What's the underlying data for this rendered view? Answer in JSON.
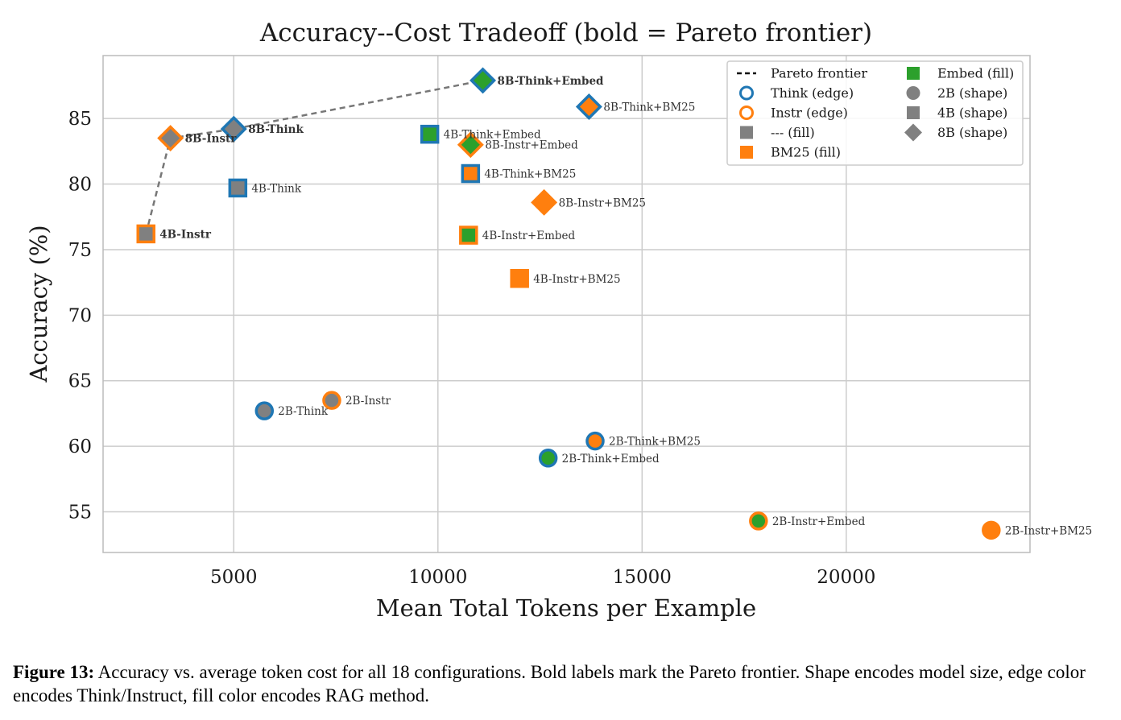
{
  "colors": {
    "think": "#1f77b4",
    "instr": "#ff7f0e",
    "embed": "#2ca02c",
    "bm25": "#ff7f0e",
    "none": "#808080",
    "frontier": "#777777",
    "grid": "#cccccc"
  },
  "caption": {
    "label": "Figure 13:",
    "text": " Accuracy vs. average token cost for all 18 configurations. Bold labels mark the Pareto frontier. Shape encodes model size, edge color encodes Think/Instruct, fill color encodes RAG method."
  },
  "chart_data": {
    "type": "scatter",
    "title": "Accuracy--Cost Tradeoff (bold = Pareto frontier)",
    "xlabel": "Mean Total Tokens per Example",
    "ylabel": "Accuracy (%)",
    "xlim": [
      1800,
      24500
    ],
    "ylim": [
      51.9,
      89.8
    ],
    "xticks": [
      5000,
      10000,
      15000,
      20000
    ],
    "yticks": [
      55,
      60,
      65,
      70,
      75,
      80,
      85
    ],
    "grid": true,
    "legend_position": "top-right",
    "legend": [
      {
        "label": "Pareto frontier",
        "kind": "dashed-line"
      },
      {
        "label": "Think (edge)",
        "kind": "edge-think"
      },
      {
        "label": "Instr (edge)",
        "kind": "edge-instr"
      },
      {
        "label": "--- (fill)",
        "kind": "fill-none"
      },
      {
        "label": "BM25 (fill)",
        "kind": "fill-bm25"
      },
      {
        "label": "Embed (fill)",
        "kind": "fill-embed"
      },
      {
        "label": "2B (shape)",
        "kind": "shape-circle"
      },
      {
        "label": "4B (shape)",
        "kind": "shape-square"
      },
      {
        "label": "8B (shape)",
        "kind": "shape-diamond"
      }
    ],
    "points": [
      {
        "label": "8B-Think+Embed",
        "x": 11100,
        "y": 87.9,
        "shape": "diamond",
        "edge": "think",
        "fill": "embed",
        "pareto": true
      },
      {
        "label": "8B-Think+BM25",
        "x": 13700,
        "y": 85.9,
        "shape": "diamond",
        "edge": "think",
        "fill": "bm25",
        "pareto": false
      },
      {
        "label": "8B-Think",
        "x": 5000,
        "y": 84.2,
        "shape": "diamond",
        "edge": "think",
        "fill": "none",
        "pareto": true
      },
      {
        "label": "8B-Instr",
        "x": 3450,
        "y": 83.5,
        "shape": "diamond",
        "edge": "instr",
        "fill": "none",
        "pareto": true
      },
      {
        "label": "4B-Think+Embed",
        "x": 9800,
        "y": 83.8,
        "shape": "square",
        "edge": "think",
        "fill": "embed",
        "pareto": false
      },
      {
        "label": "8B-Instr+Embed",
        "x": 10800,
        "y": 83.0,
        "shape": "diamond",
        "edge": "instr",
        "fill": "embed",
        "pareto": false
      },
      {
        "label": "4B-Think+BM25",
        "x": 10800,
        "y": 80.8,
        "shape": "square",
        "edge": "think",
        "fill": "bm25",
        "pareto": false
      },
      {
        "label": "4B-Think",
        "x": 5100,
        "y": 79.7,
        "shape": "square",
        "edge": "think",
        "fill": "none",
        "pareto": false
      },
      {
        "label": "8B-Instr+BM25",
        "x": 12600,
        "y": 78.6,
        "shape": "diamond",
        "edge": "instr",
        "fill": "bm25",
        "pareto": false
      },
      {
        "label": "4B-Instr",
        "x": 2850,
        "y": 76.2,
        "shape": "square",
        "edge": "instr",
        "fill": "none",
        "pareto": true
      },
      {
        "label": "4B-Instr+Embed",
        "x": 10750,
        "y": 76.1,
        "shape": "square",
        "edge": "instr",
        "fill": "embed",
        "pareto": false
      },
      {
        "label": "4B-Instr+BM25",
        "x": 12000,
        "y": 72.8,
        "shape": "square",
        "edge": "instr",
        "fill": "bm25",
        "pareto": false
      },
      {
        "label": "2B-Think",
        "x": 5750,
        "y": 62.7,
        "shape": "circle",
        "edge": "think",
        "fill": "none",
        "pareto": false
      },
      {
        "label": "2B-Instr",
        "x": 7400,
        "y": 63.5,
        "shape": "circle",
        "edge": "instr",
        "fill": "none",
        "pareto": false
      },
      {
        "label": "2B-Think+BM25",
        "x": 13850,
        "y": 60.4,
        "shape": "circle",
        "edge": "think",
        "fill": "bm25",
        "pareto": false
      },
      {
        "label": "2B-Think+Embed",
        "x": 12700,
        "y": 59.1,
        "shape": "circle",
        "edge": "think",
        "fill": "embed",
        "pareto": false
      },
      {
        "label": "2B-Instr+Embed",
        "x": 17850,
        "y": 54.3,
        "shape": "circle",
        "edge": "instr",
        "fill": "embed",
        "pareto": false
      },
      {
        "label": "2B-Instr+BM25",
        "x": 23550,
        "y": 53.6,
        "shape": "circle",
        "edge": "instr",
        "fill": "bm25",
        "pareto": false
      }
    ],
    "frontier": [
      "4B-Instr",
      "8B-Instr",
      "8B-Think",
      "8B-Think+Embed"
    ]
  }
}
